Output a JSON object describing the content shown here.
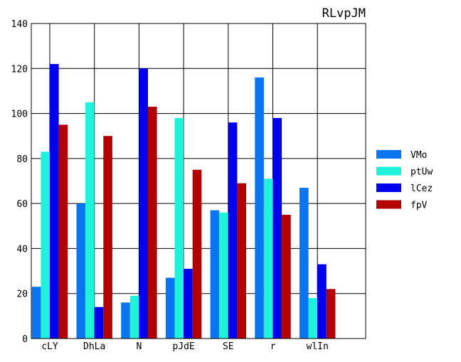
{
  "chart_data": {
    "type": "bar",
    "title": "RLvpJM",
    "xlabel": "",
    "ylabel": "",
    "categories": [
      "cLY",
      "DhLa",
      "N",
      "pJdE",
      "SE",
      "r",
      "wlIn"
    ],
    "ylim": [
      0,
      140
    ],
    "yticks": [
      0,
      20,
      40,
      60,
      80,
      100,
      120,
      140
    ],
    "grid": true,
    "legend_position": "right",
    "series": [
      {
        "name": "VMo",
        "color": "#0a75f0",
        "values": [
          23,
          60,
          16,
          27,
          57,
          116,
          67
        ]
      },
      {
        "name": "ptUw",
        "color": "#1ff2da",
        "values": [
          83,
          105,
          19,
          98,
          56,
          71,
          18
        ]
      },
      {
        "name": "lCez",
        "color": "#0000ee",
        "values": [
          122,
          14,
          120,
          31,
          96,
          98,
          33
        ]
      },
      {
        "name": "fpV",
        "color": "#b30000",
        "values": [
          95,
          90,
          103,
          75,
          69,
          55,
          22
        ]
      }
    ]
  }
}
